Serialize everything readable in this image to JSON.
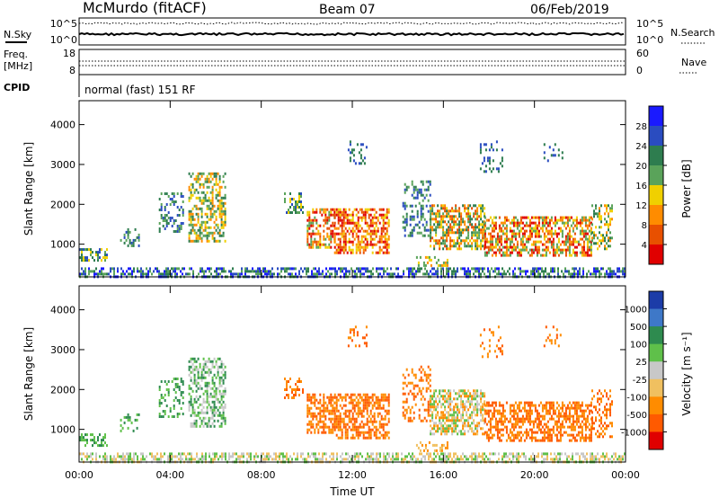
{
  "header": {
    "station": "McMurdo (fitACF)",
    "beam": "Beam 07",
    "date": "06/Feb/2019"
  },
  "top_strip": {
    "left_label": "N.Sky",
    "right_label": "N.Search",
    "left_ticks": [
      "10^5",
      "10^0"
    ],
    "right_ticks": [
      "10^5",
      "10^0"
    ]
  },
  "freq_strip": {
    "left_label_1": "Freq.",
    "left_label_2": "[MHz]",
    "left_ticks": [
      "18",
      "8"
    ],
    "right_label": "Nave",
    "right_ticks": [
      "60",
      "0"
    ]
  },
  "cpid": {
    "label": "CPID",
    "value": "normal (fast) 151 RF"
  },
  "chart_data": [
    {
      "type": "heatmap",
      "name": "power",
      "ylabel": "Slant Range [km]",
      "ylim": [
        180,
        4600
      ],
      "yticks": [
        "1000",
        "2000",
        "3000",
        "4000"
      ],
      "xlim": [
        0,
        24
      ],
      "colorbar_label": "Power [dB]",
      "colorbar_ticks": [
        "4",
        "8",
        "12",
        "16",
        "20",
        "24",
        "28"
      ],
      "colorbar_colors": [
        "#1a1aff",
        "#2a4cc0",
        "#2e7d4f",
        "#5aa35a",
        "#f0d000",
        "#ff8c00",
        "#e85000",
        "#e00000"
      ]
    },
    {
      "type": "heatmap",
      "name": "velocity",
      "ylabel": "Slant Range [km]",
      "ylim": [
        180,
        4600
      ],
      "yticks": [
        "1000",
        "2000",
        "3000",
        "4000"
      ],
      "xlim": [
        0,
        24
      ],
      "xticks": [
        "00:00",
        "04:00",
        "08:00",
        "12:00",
        "16:00",
        "20:00",
        "00:00"
      ],
      "xlabel": "Time UT",
      "colorbar_label": "Velocity [m s⁻¹]",
      "colorbar_ticks": [
        "1000",
        "500",
        "100",
        "25",
        "-25",
        "-100",
        "-500",
        "-1000"
      ],
      "colorbar_colors": [
        "#1c3ca8",
        "#3e78c8",
        "#2e8b4f",
        "#5fc04a",
        "#c8c8c8",
        "#f0c060",
        "#ff8c00",
        "#ff5a00",
        "#e00000"
      ]
    }
  ]
}
